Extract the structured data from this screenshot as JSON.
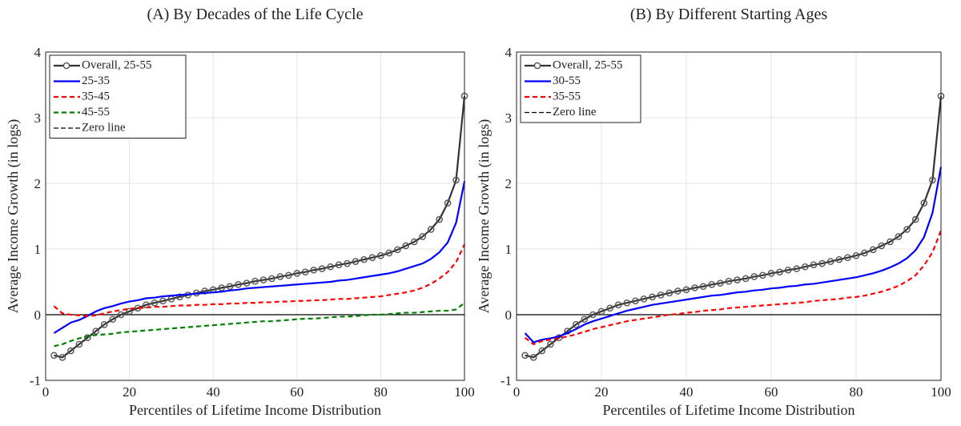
{
  "chart_data": [
    {
      "type": "line",
      "title": "(A) By Decades of the Life Cycle",
      "xlabel": "Percentiles of Lifetime Income Distribution",
      "ylabel": "Average Income Growth (in logs)",
      "xlim": [
        0,
        100
      ],
      "ylim": [
        -1,
        4
      ],
      "xticks": [
        0,
        20,
        40,
        60,
        80,
        100
      ],
      "yticks": [
        -1,
        0,
        1,
        2,
        3,
        4
      ],
      "grid": true,
      "legend": "upper left",
      "x": [
        2,
        4,
        6,
        8,
        10,
        12,
        14,
        16,
        18,
        20,
        22,
        24,
        26,
        28,
        30,
        32,
        34,
        36,
        38,
        40,
        42,
        44,
        46,
        48,
        50,
        52,
        54,
        56,
        58,
        60,
        62,
        64,
        66,
        68,
        70,
        72,
        74,
        76,
        78,
        80,
        82,
        84,
        86,
        88,
        90,
        92,
        94,
        96,
        98,
        100
      ],
      "series": [
        {
          "name": "Overall, 25-55",
          "color": "#333333",
          "marker": "circle",
          "dashed": false,
          "values": [
            -0.62,
            -0.65,
            -0.55,
            -0.45,
            -0.35,
            -0.25,
            -0.15,
            -0.07,
            0.0,
            0.05,
            0.1,
            0.15,
            0.18,
            0.21,
            0.24,
            0.27,
            0.3,
            0.33,
            0.36,
            0.38,
            0.41,
            0.43,
            0.46,
            0.48,
            0.51,
            0.53,
            0.55,
            0.58,
            0.6,
            0.63,
            0.65,
            0.68,
            0.7,
            0.73,
            0.76,
            0.78,
            0.81,
            0.84,
            0.87,
            0.9,
            0.94,
            0.99,
            1.05,
            1.11,
            1.19,
            1.3,
            1.45,
            1.7,
            2.05,
            3.33
          ]
        },
        {
          "name": "25-35",
          "color": "#0000ff",
          "marker": "none",
          "dashed": false,
          "values": [
            -0.28,
            -0.2,
            -0.12,
            -0.08,
            -0.02,
            0.05,
            0.1,
            0.13,
            0.17,
            0.2,
            0.22,
            0.25,
            0.26,
            0.28,
            0.29,
            0.3,
            0.31,
            0.32,
            0.33,
            0.34,
            0.35,
            0.37,
            0.38,
            0.4,
            0.41,
            0.42,
            0.43,
            0.44,
            0.45,
            0.46,
            0.47,
            0.48,
            0.49,
            0.5,
            0.52,
            0.53,
            0.55,
            0.57,
            0.59,
            0.61,
            0.63,
            0.66,
            0.7,
            0.74,
            0.78,
            0.85,
            0.95,
            1.1,
            1.4,
            2.03
          ]
        },
        {
          "name": "35-45",
          "color": "#ff0000",
          "marker": "none",
          "dashed": true,
          "values": [
            0.13,
            0.02,
            0.0,
            -0.01,
            -0.02,
            -0.01,
            0.02,
            0.05,
            0.07,
            0.09,
            0.1,
            0.11,
            0.12,
            0.12,
            0.13,
            0.14,
            0.14,
            0.15,
            0.15,
            0.16,
            0.16,
            0.17,
            0.17,
            0.18,
            0.18,
            0.19,
            0.19,
            0.2,
            0.2,
            0.21,
            0.21,
            0.22,
            0.22,
            0.23,
            0.24,
            0.24,
            0.25,
            0.26,
            0.27,
            0.28,
            0.3,
            0.32,
            0.34,
            0.37,
            0.41,
            0.47,
            0.55,
            0.65,
            0.8,
            1.07
          ]
        },
        {
          "name": "45-55",
          "color": "#008000",
          "marker": "none",
          "dashed": true,
          "values": [
            -0.48,
            -0.45,
            -0.4,
            -0.36,
            -0.33,
            -0.31,
            -0.3,
            -0.29,
            -0.27,
            -0.26,
            -0.25,
            -0.24,
            -0.23,
            -0.22,
            -0.21,
            -0.2,
            -0.19,
            -0.18,
            -0.17,
            -0.16,
            -0.15,
            -0.14,
            -0.13,
            -0.12,
            -0.11,
            -0.1,
            -0.1,
            -0.09,
            -0.08,
            -0.07,
            -0.06,
            -0.06,
            -0.05,
            -0.04,
            -0.03,
            -0.03,
            -0.02,
            -0.01,
            0.0,
            0.0,
            0.01,
            0.02,
            0.03,
            0.03,
            0.04,
            0.05,
            0.06,
            0.06,
            0.08,
            0.18
          ]
        }
      ],
      "hline": {
        "name": "Zero line",
        "value": 0,
        "color": "#000000"
      }
    },
    {
      "type": "line",
      "title": "(B) By Different Starting Ages",
      "xlabel": "Percentiles of Lifetime Income Distribution",
      "ylabel": "Average Income Growth (in logs)",
      "xlim": [
        0,
        100
      ],
      "ylim": [
        -1,
        4
      ],
      "xticks": [
        0,
        20,
        40,
        60,
        80,
        100
      ],
      "yticks": [
        -1,
        0,
        1,
        2,
        3,
        4
      ],
      "grid": true,
      "legend": "upper left",
      "x": [
        2,
        4,
        6,
        8,
        10,
        12,
        14,
        16,
        18,
        20,
        22,
        24,
        26,
        28,
        30,
        32,
        34,
        36,
        38,
        40,
        42,
        44,
        46,
        48,
        50,
        52,
        54,
        56,
        58,
        60,
        62,
        64,
        66,
        68,
        70,
        72,
        74,
        76,
        78,
        80,
        82,
        84,
        86,
        88,
        90,
        92,
        94,
        96,
        98,
        100
      ],
      "series": [
        {
          "name": "Overall, 25-55",
          "color": "#333333",
          "marker": "circle",
          "dashed": false,
          "values": [
            -0.62,
            -0.65,
            -0.55,
            -0.45,
            -0.35,
            -0.25,
            -0.15,
            -0.07,
            0.0,
            0.05,
            0.1,
            0.15,
            0.18,
            0.21,
            0.24,
            0.27,
            0.3,
            0.33,
            0.36,
            0.38,
            0.41,
            0.43,
            0.46,
            0.48,
            0.51,
            0.53,
            0.55,
            0.58,
            0.6,
            0.63,
            0.65,
            0.68,
            0.7,
            0.73,
            0.76,
            0.78,
            0.81,
            0.84,
            0.87,
            0.9,
            0.94,
            0.99,
            1.05,
            1.11,
            1.19,
            1.3,
            1.45,
            1.7,
            2.05,
            3.33
          ]
        },
        {
          "name": "30-55",
          "color": "#0000ff",
          "marker": "none",
          "dashed": false,
          "values": [
            -0.28,
            -0.42,
            -0.38,
            -0.36,
            -0.33,
            -0.28,
            -0.22,
            -0.15,
            -0.1,
            -0.06,
            -0.02,
            0.02,
            0.06,
            0.09,
            0.12,
            0.15,
            0.17,
            0.19,
            0.21,
            0.23,
            0.25,
            0.27,
            0.29,
            0.3,
            0.32,
            0.34,
            0.35,
            0.37,
            0.38,
            0.4,
            0.41,
            0.43,
            0.44,
            0.46,
            0.47,
            0.49,
            0.51,
            0.53,
            0.55,
            0.57,
            0.6,
            0.63,
            0.67,
            0.72,
            0.78,
            0.86,
            0.98,
            1.18,
            1.55,
            2.25
          ]
        },
        {
          "name": "35-55",
          "color": "#ff0000",
          "marker": "none",
          "dashed": true,
          "values": [
            -0.35,
            -0.45,
            -0.4,
            -0.38,
            -0.36,
            -0.33,
            -0.3,
            -0.26,
            -0.22,
            -0.19,
            -0.16,
            -0.13,
            -0.1,
            -0.08,
            -0.06,
            -0.04,
            -0.02,
            0.0,
            0.01,
            0.03,
            0.04,
            0.06,
            0.07,
            0.08,
            0.1,
            0.11,
            0.12,
            0.13,
            0.14,
            0.15,
            0.16,
            0.17,
            0.18,
            0.19,
            0.21,
            0.22,
            0.23,
            0.24,
            0.26,
            0.27,
            0.29,
            0.32,
            0.35,
            0.39,
            0.44,
            0.51,
            0.6,
            0.75,
            0.95,
            1.28
          ]
        }
      ],
      "hline": {
        "name": "Zero line",
        "value": 0,
        "color": "#000000"
      }
    }
  ]
}
